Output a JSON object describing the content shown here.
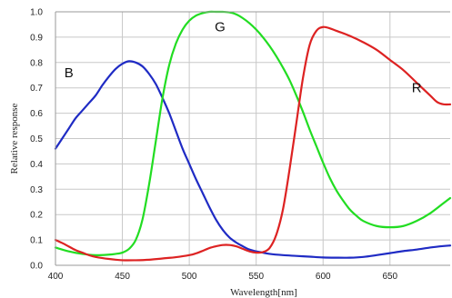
{
  "chart_data": {
    "type": "line",
    "title": "",
    "xlabel": "Wavelength[nm]",
    "ylabel": "Relative response",
    "xlim": [
      400,
      695
    ],
    "ylim": [
      0,
      1.0
    ],
    "xticks": [
      400,
      450,
      500,
      550,
      600,
      650
    ],
    "xtick_labels": [
      "400",
      "450",
      "500",
      "550",
      "600",
      "650"
    ],
    "yticks": [
      0,
      0.1,
      0.2,
      0.3,
      0.4,
      0.5,
      0.6,
      0.7,
      0.8,
      0.9,
      1.0
    ],
    "ytick_labels": [
      "0.0",
      "0.1",
      "0.2",
      "0.3",
      "0.4",
      "0.5",
      "0.6",
      "0.7",
      "0.8",
      "0.9",
      "1.0"
    ],
    "grid": true,
    "legend": "none",
    "series": [
      {
        "name": "B",
        "color": "#1f2bc4",
        "label_at": [
          410,
          0.76
        ],
        "x": [
          400,
          405,
          410,
          415,
          420,
          425,
          430,
          435,
          440,
          445,
          450,
          455,
          460,
          465,
          470,
          475,
          480,
          485,
          490,
          495,
          500,
          505,
          510,
          515,
          520,
          525,
          530,
          535,
          540,
          545,
          550,
          555,
          560,
          570,
          580,
          590,
          600,
          610,
          620,
          630,
          640,
          650,
          660,
          670,
          680,
          690,
          695
        ],
        "y": [
          0.46,
          0.5,
          0.54,
          0.58,
          0.61,
          0.64,
          0.67,
          0.71,
          0.745,
          0.775,
          0.795,
          0.805,
          0.8,
          0.785,
          0.755,
          0.715,
          0.66,
          0.6,
          0.53,
          0.46,
          0.4,
          0.34,
          0.285,
          0.23,
          0.18,
          0.14,
          0.11,
          0.09,
          0.075,
          0.062,
          0.055,
          0.05,
          0.045,
          0.04,
          0.037,
          0.034,
          0.031,
          0.03,
          0.03,
          0.033,
          0.04,
          0.048,
          0.056,
          0.062,
          0.07,
          0.076,
          0.078
        ]
      },
      {
        "name": "G",
        "color": "#22dd22",
        "label_at": [
          523,
          0.94
        ],
        "x": [
          400,
          410,
          420,
          430,
          440,
          445,
          450,
          455,
          460,
          465,
          470,
          475,
          480,
          485,
          490,
          495,
          500,
          505,
          510,
          515,
          520,
          525,
          530,
          535,
          540,
          545,
          550,
          555,
          560,
          565,
          570,
          575,
          580,
          585,
          590,
          595,
          600,
          605,
          610,
          615,
          620,
          625,
          630,
          640,
          650,
          660,
          670,
          680,
          690,
          695
        ],
        "y": [
          0.07,
          0.055,
          0.045,
          0.04,
          0.042,
          0.045,
          0.05,
          0.065,
          0.1,
          0.18,
          0.32,
          0.49,
          0.66,
          0.79,
          0.875,
          0.93,
          0.965,
          0.985,
          0.995,
          1.0,
          1.0,
          1.0,
          0.998,
          0.99,
          0.975,
          0.955,
          0.93,
          0.9,
          0.865,
          0.825,
          0.78,
          0.73,
          0.67,
          0.605,
          0.535,
          0.47,
          0.405,
          0.345,
          0.295,
          0.255,
          0.22,
          0.195,
          0.175,
          0.155,
          0.15,
          0.155,
          0.175,
          0.205,
          0.245,
          0.265
        ]
      },
      {
        "name": "R",
        "color": "#dd2222",
        "label_at": [
          670,
          0.7
        ],
        "x": [
          400,
          405,
          410,
          415,
          420,
          425,
          430,
          440,
          450,
          460,
          470,
          480,
          490,
          500,
          505,
          510,
          515,
          520,
          525,
          530,
          535,
          540,
          545,
          550,
          555,
          560,
          565,
          570,
          575,
          580,
          585,
          590,
          595,
          600,
          605,
          610,
          620,
          630,
          640,
          650,
          660,
          670,
          680,
          685,
          690,
          695
        ],
        "y": [
          0.1,
          0.088,
          0.074,
          0.06,
          0.05,
          0.04,
          0.033,
          0.025,
          0.02,
          0.02,
          0.022,
          0.027,
          0.032,
          0.04,
          0.047,
          0.057,
          0.068,
          0.075,
          0.08,
          0.08,
          0.075,
          0.065,
          0.055,
          0.05,
          0.052,
          0.068,
          0.12,
          0.22,
          0.38,
          0.56,
          0.74,
          0.87,
          0.925,
          0.94,
          0.935,
          0.925,
          0.905,
          0.88,
          0.85,
          0.81,
          0.77,
          0.72,
          0.67,
          0.645,
          0.635,
          0.635
        ]
      }
    ]
  }
}
